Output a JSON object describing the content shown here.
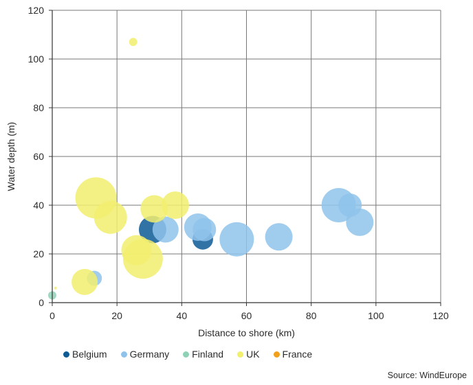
{
  "chart_data": {
    "type": "bubble",
    "xlabel": "Distance to shore (km)",
    "ylabel": "Water depth (m)",
    "xlim": [
      0,
      120
    ],
    "ylim": [
      0,
      120
    ],
    "xticks": [
      0,
      20,
      40,
      60,
      80,
      100,
      120
    ],
    "yticks": [
      0,
      20,
      40,
      60,
      80,
      100,
      120
    ],
    "grid": "vertical and horizontal",
    "legend_position": "bottom",
    "source": "Source: WindEurope",
    "series": [
      {
        "name": "Belgium",
        "color": "#0d5a95",
        "points": [
          {
            "x": 31,
            "y": 30,
            "size": 20
          },
          {
            "x": 46.5,
            "y": 26,
            "size": 15
          }
        ]
      },
      {
        "name": "Germany",
        "color": "#8fc3eb",
        "points": [
          {
            "x": 13,
            "y": 10,
            "size": 11
          },
          {
            "x": 35,
            "y": 30,
            "size": 19
          },
          {
            "x": 45,
            "y": 31,
            "size": 20
          },
          {
            "x": 47,
            "y": 30,
            "size": 17
          },
          {
            "x": 57,
            "y": 26,
            "size": 25
          },
          {
            "x": 70,
            "y": 27,
            "size": 20
          },
          {
            "x": 88.5,
            "y": 40,
            "size": 25
          },
          {
            "x": 92,
            "y": 40,
            "size": 17
          },
          {
            "x": 95,
            "y": 33,
            "size": 20
          }
        ]
      },
      {
        "name": "Finland",
        "color": "#8fd1b7",
        "points": [
          {
            "x": 0,
            "y": 3,
            "size": 6
          }
        ]
      },
      {
        "name": "UK",
        "color": "#f2ee6e",
        "points": [
          {
            "x": 25,
            "y": 107,
            "size": 6
          },
          {
            "x": 13.5,
            "y": 43,
            "size": 30
          },
          {
            "x": 18,
            "y": 35,
            "size": 24
          },
          {
            "x": 38,
            "y": 40,
            "size": 20
          },
          {
            "x": 31.5,
            "y": 38.5,
            "size": 20
          },
          {
            "x": 26,
            "y": 21.5,
            "size": 22
          },
          {
            "x": 28,
            "y": 18,
            "size": 29
          },
          {
            "x": 10,
            "y": 8.5,
            "size": 19
          },
          {
            "x": 1,
            "y": 6,
            "size": 2
          },
          {
            "x": 22.5,
            "y": 33,
            "size": 1.5
          }
        ]
      },
      {
        "name": "France",
        "color": "#f2a01b",
        "points": []
      }
    ]
  }
}
